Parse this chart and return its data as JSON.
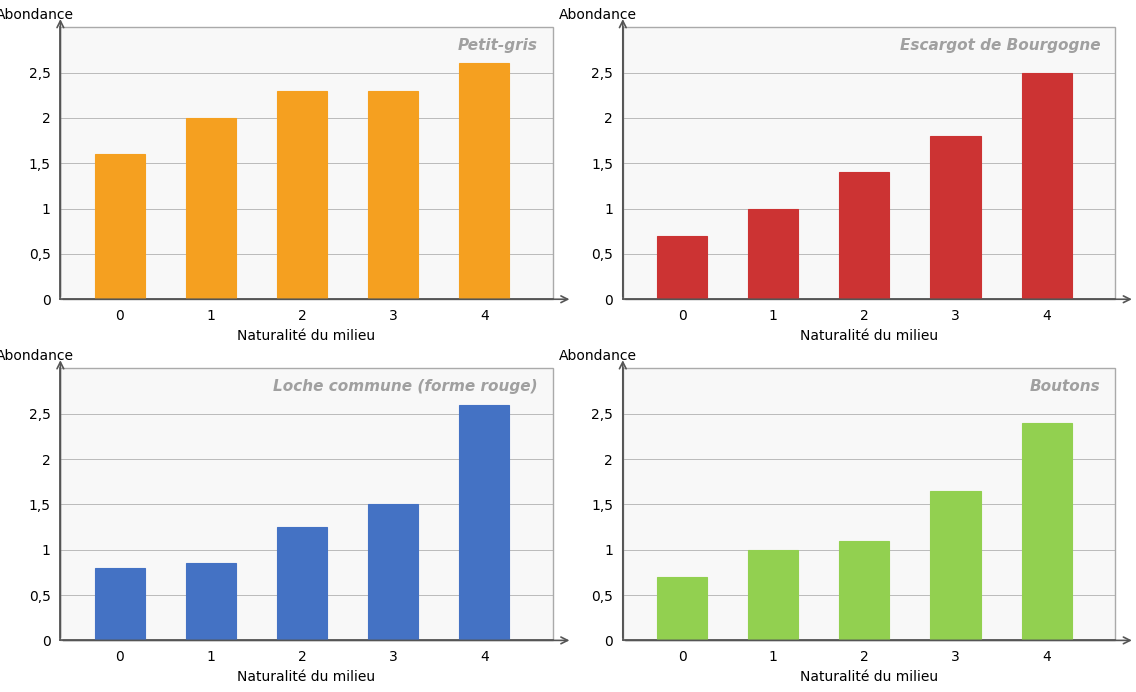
{
  "charts": [
    {
      "title": "Petit-gris",
      "title_color": "#A0A0A0",
      "bar_color": "#F5A020",
      "bar_edge_color": "#E08000",
      "values": [
        1.6,
        2.0,
        2.3,
        2.3,
        2.6
      ],
      "categories": [
        0,
        1,
        2,
        3,
        4
      ],
      "ylabel": "Abondance",
      "xlabel": "Naturalité du milieu",
      "ylim": [
        0,
        3.0
      ],
      "yticks": [
        0,
        0.5,
        1,
        1.5,
        2,
        2.5
      ],
      "ytick_labels": [
        "0",
        "0,5",
        "1",
        "1,5",
        "2",
        "2,5"
      ],
      "row": 0,
      "col": 0
    },
    {
      "title": "Escargot de Bourgogne",
      "title_color": "#A0A0A0",
      "bar_color": "#CC3333",
      "bar_edge_color": "#AA2222",
      "values": [
        0.7,
        1.0,
        1.4,
        1.8,
        2.5
      ],
      "categories": [
        0,
        1,
        2,
        3,
        4
      ],
      "ylabel": "Abondance",
      "xlabel": "Naturalité du milieu",
      "ylim": [
        0,
        3.0
      ],
      "yticks": [
        0,
        0.5,
        1,
        1.5,
        2,
        2.5
      ],
      "ytick_labels": [
        "0",
        "0,5",
        "1",
        "1,5",
        "2",
        "2,5"
      ],
      "row": 0,
      "col": 1
    },
    {
      "title": "Loche commune (forme rouge)",
      "title_color": "#A0A0A0",
      "bar_color": "#4472C4",
      "bar_edge_color": "#2255A0",
      "values": [
        0.8,
        0.85,
        1.25,
        1.5,
        2.6
      ],
      "categories": [
        0,
        1,
        2,
        3,
        4
      ],
      "ylabel": "Abondance",
      "xlabel": "Naturalité du milieu",
      "ylim": [
        0,
        3.0
      ],
      "yticks": [
        0,
        0.5,
        1,
        1.5,
        2,
        2.5
      ],
      "ytick_labels": [
        "0",
        "0,5",
        "1",
        "1,5",
        "2",
        "2,5"
      ],
      "row": 1,
      "col": 0
    },
    {
      "title": "Boutons",
      "title_color": "#A0A0A0",
      "bar_color": "#92D050",
      "bar_edge_color": "#70B030",
      "values": [
        0.7,
        1.0,
        1.1,
        1.65,
        2.4
      ],
      "categories": [
        0,
        1,
        2,
        3,
        4
      ],
      "ylabel": "Abondance",
      "xlabel": "Naturalité du milieu",
      "ylim": [
        0,
        3.0
      ],
      "yticks": [
        0,
        0.5,
        1,
        1.5,
        2,
        2.5
      ],
      "ytick_labels": [
        "0",
        "0,5",
        "1",
        "1,5",
        "2",
        "2,5"
      ],
      "row": 1,
      "col": 1
    }
  ],
  "grid_color": "#BBBBBB",
  "grid_linewidth": 0.7,
  "bar_width": 0.55,
  "background_color": "#FFFFFF",
  "panel_bg_color": "#F8F8F8",
  "spine_color": "#555555",
  "border_color": "#AAAAAA",
  "tick_label_fontsize": 10,
  "axis_label_fontsize": 10,
  "ylabel_fontsize": 10,
  "title_fontsize": 11
}
